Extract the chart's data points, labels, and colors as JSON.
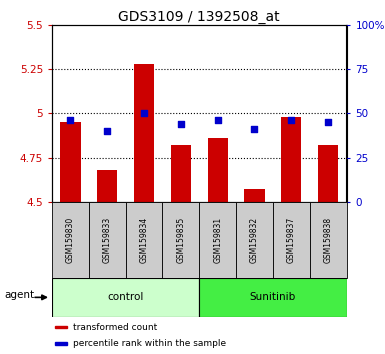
{
  "title": "GDS3109 / 1392508_at",
  "samples": [
    "GSM159830",
    "GSM159833",
    "GSM159834",
    "GSM159835",
    "GSM159831",
    "GSM159832",
    "GSM159837",
    "GSM159838"
  ],
  "bar_values": [
    4.95,
    4.68,
    5.28,
    4.82,
    4.86,
    4.57,
    4.98,
    4.82
  ],
  "percentile_values": [
    46,
    40,
    50,
    44,
    46,
    41,
    46,
    45
  ],
  "bar_bottom": 4.5,
  "ylim_left": [
    4.5,
    5.5
  ],
  "ylim_right": [
    0,
    100
  ],
  "yticks_left": [
    4.5,
    4.75,
    5.0,
    5.25,
    5.5
  ],
  "yticks_right": [
    0,
    25,
    50,
    75,
    100
  ],
  "ytick_labels_left": [
    "4.5",
    "4.75",
    "5",
    "5.25",
    "5.5"
  ],
  "ytick_labels_right": [
    "0",
    "25",
    "50",
    "75",
    "100%"
  ],
  "hlines": [
    4.75,
    5.0,
    5.25
  ],
  "bar_color": "#cc0000",
  "dot_color": "#0000cc",
  "control_color": "#ccffcc",
  "sunitinib_color": "#44ee44",
  "legend_items": [
    {
      "color": "#cc0000",
      "label": "transformed count"
    },
    {
      "color": "#0000cc",
      "label": "percentile rank within the sample"
    }
  ],
  "agent_label": "agent",
  "left_tick_color": "#cc0000",
  "right_tick_color": "#0000cc",
  "sample_box_color": "#cccccc",
  "title_fontsize": 10,
  "tick_fontsize": 7.5,
  "bar_width": 0.55
}
